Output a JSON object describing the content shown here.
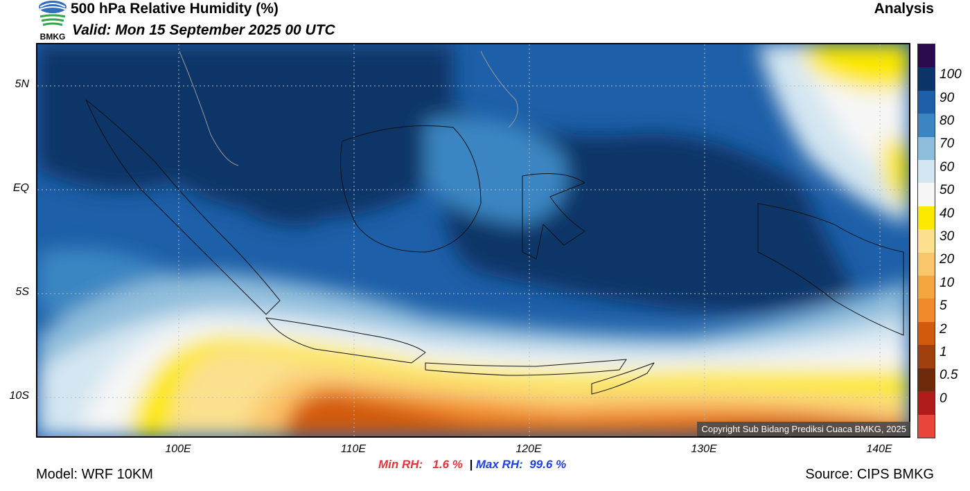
{
  "header": {
    "logo_text": "BMKG",
    "title": "500 hPa Relative Humidity (%)",
    "valid": "Valid: Mon 15 September 2025 00 UTC",
    "mode": "Analysis"
  },
  "map": {
    "lat_labels": [
      "5N",
      "EQ",
      "5S",
      "10S"
    ],
    "lon_labels": [
      "100E",
      "110E",
      "120E",
      "130E",
      "140E"
    ],
    "copyright": "Copyright Sub Bidang Prediksi Cuaca BMKG, 2025"
  },
  "colorbar": {
    "colors": [
      "#2a0a4a",
      "#0d3468",
      "#1d5fa8",
      "#3b86c2",
      "#8fbddc",
      "#d4e6f1",
      "#f6f6f6",
      "#fde800",
      "#fbe08e",
      "#fac66b",
      "#f6a540",
      "#f18a2a",
      "#d15a0c",
      "#a0400c",
      "#6e2a0a",
      "#b01c1c",
      "#e8463a"
    ],
    "labels": [
      "100",
      "90",
      "80",
      "70",
      "60",
      "50",
      "40",
      "30",
      "20",
      "10",
      "5",
      "2",
      "1",
      "0.5",
      "0"
    ]
  },
  "stats": {
    "min_label": "Min RH:",
    "min_value": "1.6 %",
    "separator": "|",
    "max_label": "Max RH:",
    "max_value": "99.6 %"
  },
  "footer": {
    "model": "Model: WRF 10KM",
    "source": "Source: CIPS BMKG"
  }
}
